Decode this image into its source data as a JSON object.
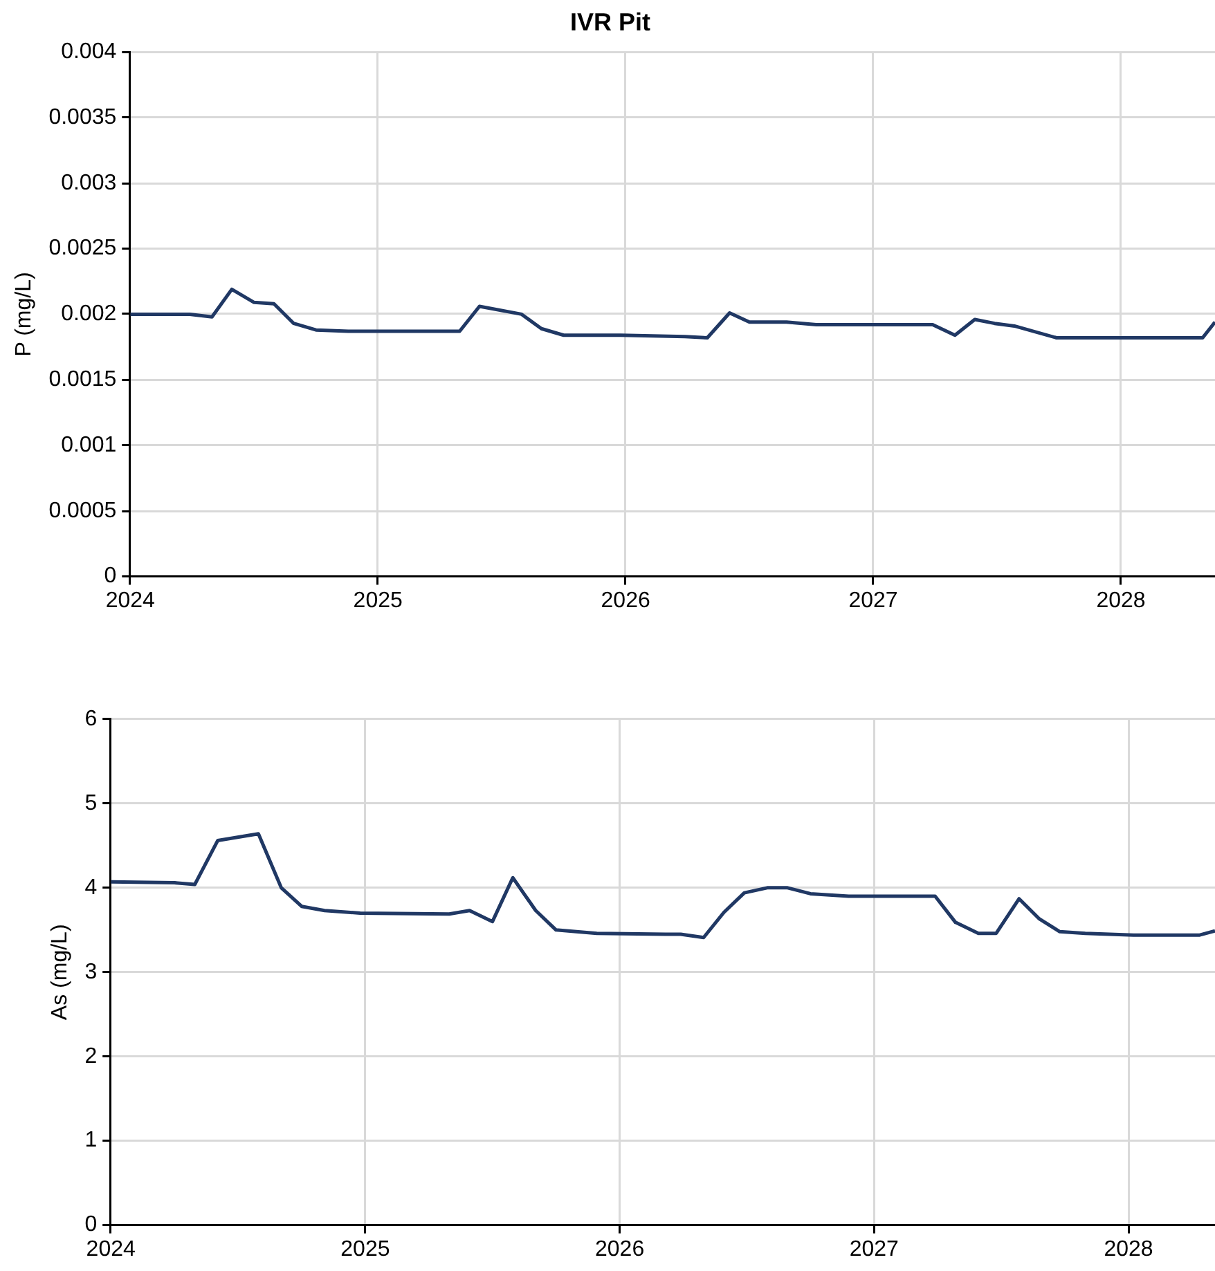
{
  "chart_data": [
    {
      "type": "line",
      "title": "IVR Pit",
      "ylabel": "P (mg/L)",
      "color": "#203864",
      "grid": true,
      "x": [
        2024.0,
        2024.24,
        2024.33,
        2024.41,
        2024.5,
        2024.58,
        2024.66,
        2024.75,
        2024.88,
        2025.33,
        2025.41,
        2025.58,
        2025.66,
        2025.75,
        2025.98,
        2026.24,
        2026.33,
        2026.42,
        2026.5,
        2026.65,
        2026.77,
        2027.24,
        2027.33,
        2027.41,
        2027.49,
        2027.57,
        2027.74,
        2027.87,
        2028.33,
        2028.38
      ],
      "values": [
        0.002,
        0.002,
        0.00198,
        0.00219,
        0.00209,
        0.00208,
        0.00193,
        0.00188,
        0.00187,
        0.00187,
        0.00206,
        0.002,
        0.00189,
        0.00184,
        0.00184,
        0.00183,
        0.00182,
        0.00201,
        0.00194,
        0.00194,
        0.00192,
        0.00192,
        0.00184,
        0.00196,
        0.00193,
        0.00191,
        0.00182,
        0.00182,
        0.00182,
        0.00194
      ],
      "xlim": [
        2024,
        2028.38
      ],
      "xticks": [
        2024,
        2025,
        2026,
        2027,
        2028
      ],
      "ylim": [
        0,
        0.004
      ],
      "yticks": [
        0,
        0.0005,
        0.001,
        0.0015,
        0.002,
        0.0025,
        0.003,
        0.0035,
        0.004
      ]
    },
    {
      "type": "line",
      "ylabel": "As (mg/L)",
      "color": "#203864",
      "grid": true,
      "x": [
        2024.0,
        2024.25,
        2024.33,
        2024.42,
        2024.58,
        2024.67,
        2024.75,
        2024.84,
        2024.98,
        2025.33,
        2025.41,
        2025.5,
        2025.58,
        2025.67,
        2025.75,
        2025.91,
        2026.18,
        2026.24,
        2026.33,
        2026.41,
        2026.49,
        2026.58,
        2026.66,
        2026.75,
        2026.9,
        2027.24,
        2027.32,
        2027.41,
        2027.48,
        2027.57,
        2027.65,
        2027.73,
        2027.83,
        2028.02,
        2028.28,
        2028.34
      ],
      "values": [
        4.07,
        4.06,
        4.04,
        4.56,
        4.64,
        4.0,
        3.78,
        3.73,
        3.7,
        3.69,
        3.73,
        3.6,
        4.12,
        3.73,
        3.5,
        3.46,
        3.45,
        3.45,
        3.41,
        3.71,
        3.94,
        4.0,
        4.0,
        3.93,
        3.9,
        3.9,
        3.59,
        3.46,
        3.46,
        3.87,
        3.63,
        3.48,
        3.46,
        3.44,
        3.44,
        3.49
      ],
      "xlim": [
        2024,
        2028.34
      ],
      "xticks": [
        2024,
        2025,
        2026,
        2027,
        2028
      ],
      "ylim": [
        0,
        6
      ],
      "yticks": [
        0,
        1,
        2,
        3,
        4,
        5,
        6
      ]
    }
  ]
}
